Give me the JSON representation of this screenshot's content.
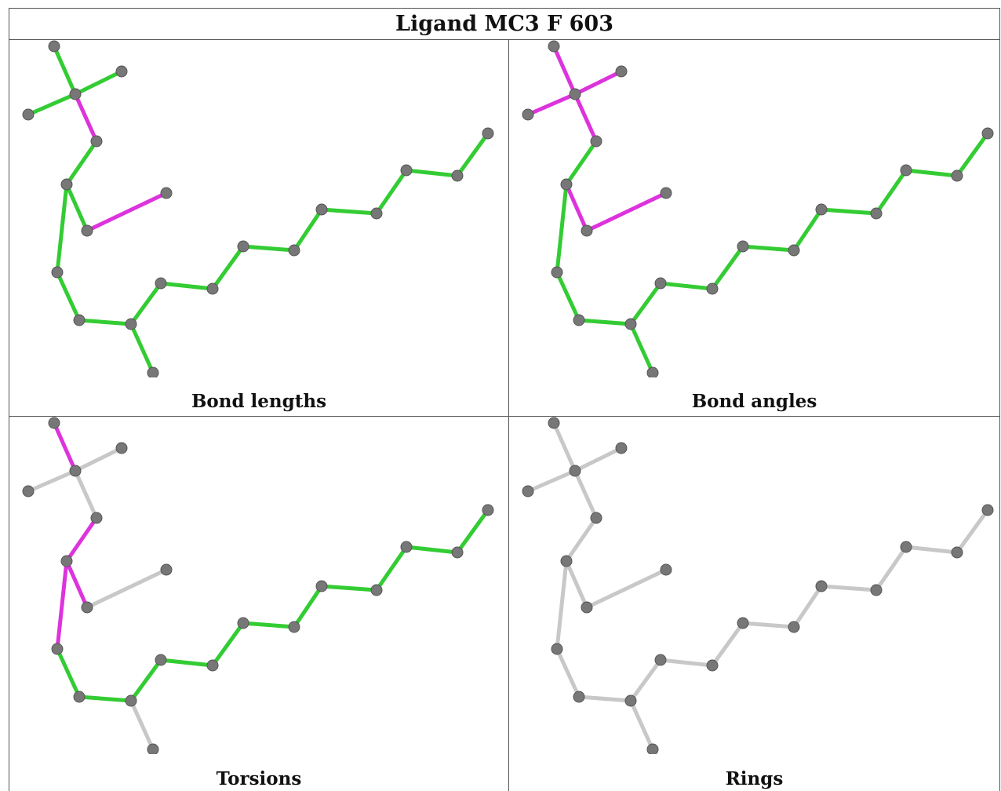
{
  "title": "Ligand MC3 F 603",
  "panels": [
    {
      "caption": "Bond lengths",
      "highlighted_bonds": [
        [
          0,
          4
        ],
        [
          6,
          7
        ]
      ],
      "plain": false
    },
    {
      "caption": "Bond angles",
      "highlighted_bonds": [
        [
          0,
          1
        ],
        [
          0,
          3
        ],
        [
          0,
          4
        ],
        [
          0,
          2
        ],
        [
          5,
          6
        ],
        [
          6,
          7
        ]
      ],
      "plain": false
    },
    {
      "caption": "Torsions",
      "highlighted_bonds": [
        [
          0,
          1
        ],
        [
          4,
          5
        ],
        [
          5,
          6
        ],
        [
          5,
          8
        ]
      ],
      "neutral_bonds": [
        [
          0,
          2
        ],
        [
          0,
          3
        ],
        [
          0,
          4
        ],
        [
          6,
          7
        ],
        [
          10,
          11
        ],
        [
          23,
          24
        ]
      ],
      "plain": false
    },
    {
      "caption": "Rings",
      "highlighted_bonds": [],
      "plain": true
    }
  ],
  "colors": {
    "ok_bond": "#33cc33",
    "outlier_bond": "#dd33dd",
    "neutral_bond": "#c8c8c8",
    "atom": "#777777",
    "atom_edge": "#555555"
  },
  "icons": [
    "molecule-structure"
  ]
}
